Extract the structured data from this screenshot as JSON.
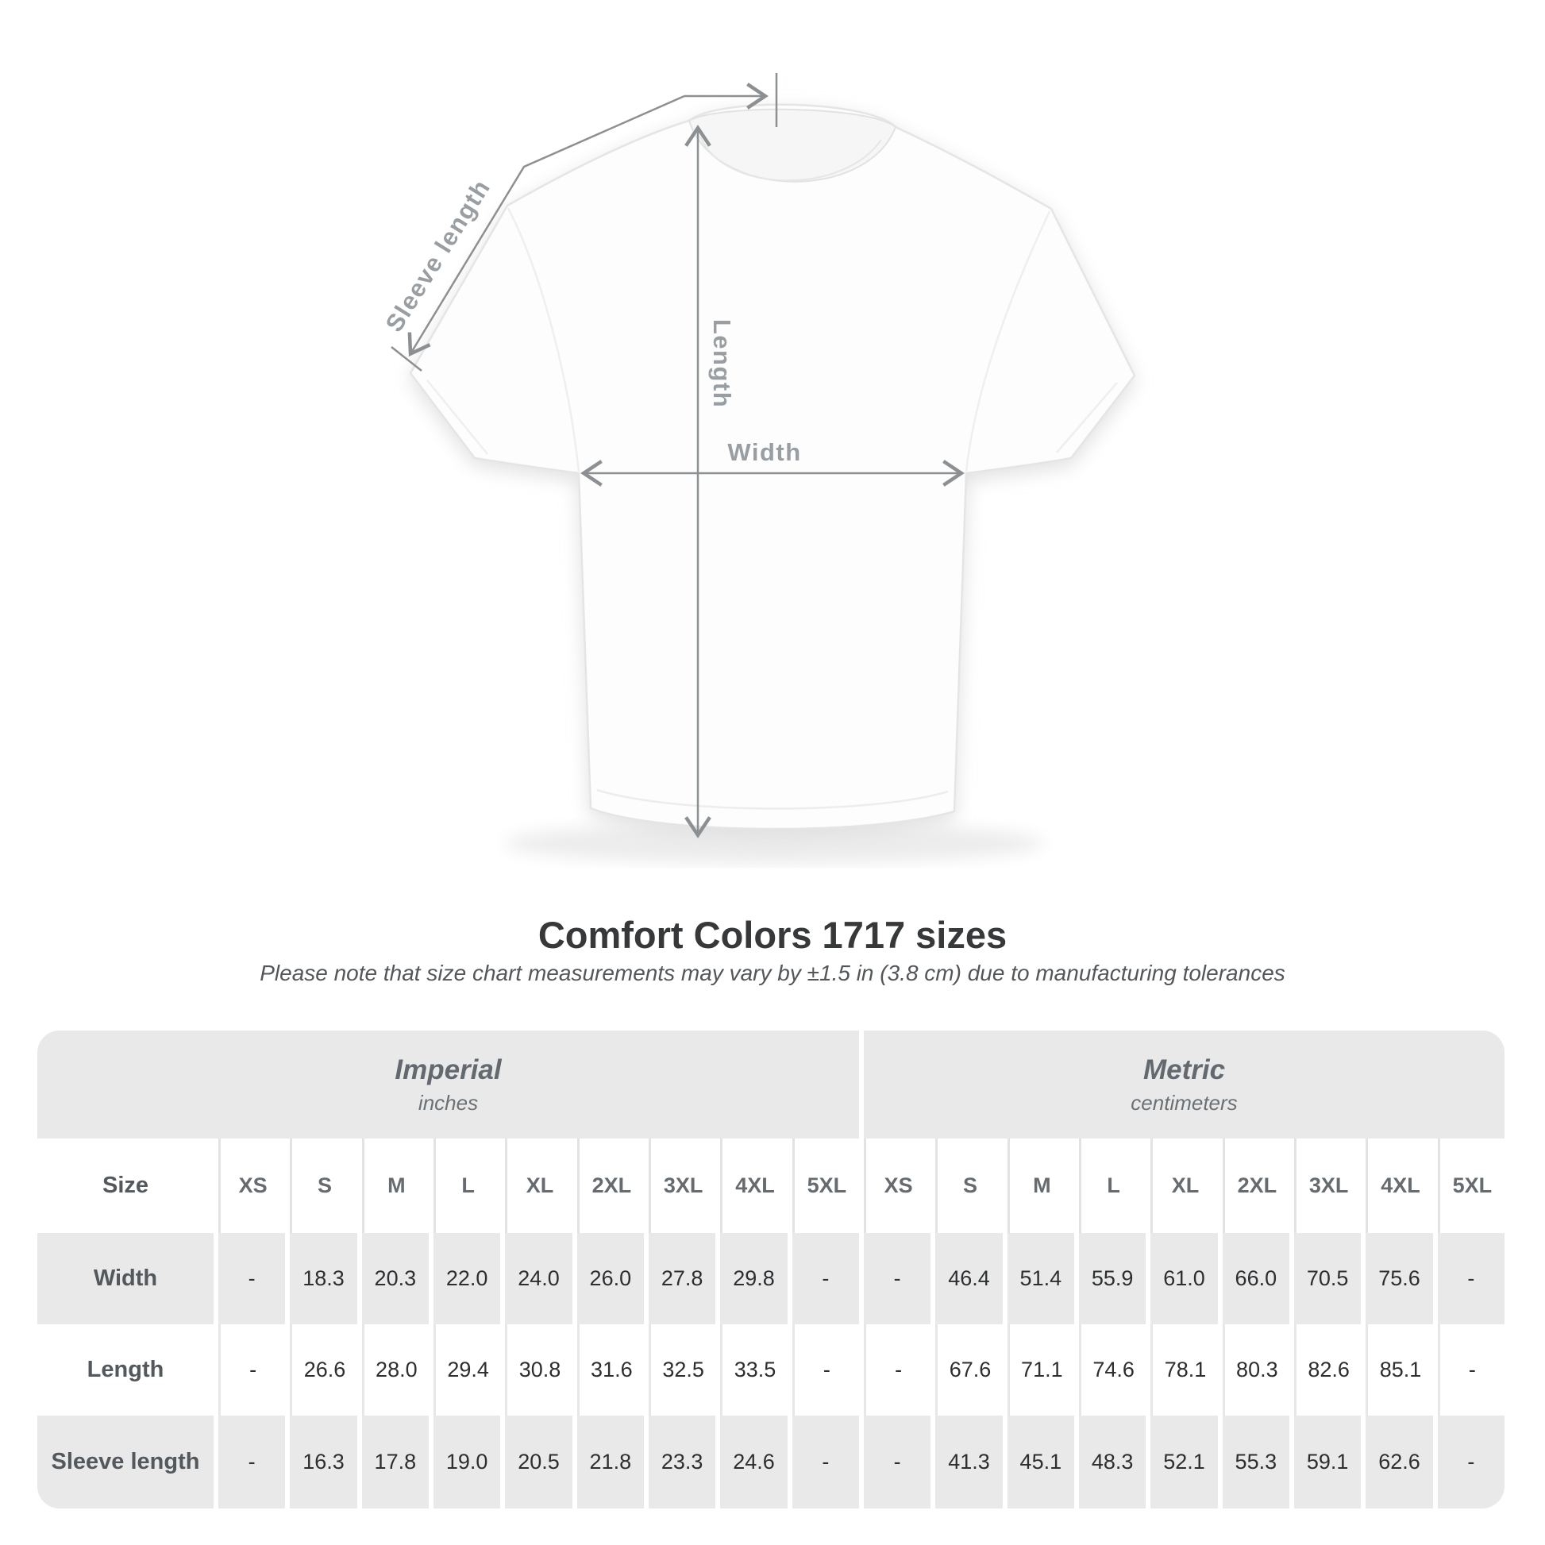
{
  "title": "Comfort Colors 1717 sizes",
  "subtitle": "Please note that size chart measurements may vary by ±1.5 in (3.8 cm) due to manufacturing tolerances",
  "diagram": {
    "sleeve_label": "Sleeve length",
    "length_label": "Length",
    "width_label": "Width"
  },
  "colors": {
    "measure_line": "#8d9093",
    "measure_label": "#999ea2",
    "title_text": "#363839",
    "table_band": "#e9e9ea"
  },
  "table": {
    "size_header": "Size",
    "groups": [
      {
        "label": "Imperial",
        "sublabel": "inches"
      },
      {
        "label": "Metric",
        "sublabel": "centimeters"
      }
    ],
    "sizes": [
      "XS",
      "S",
      "M",
      "L",
      "XL",
      "2XL",
      "3XL",
      "4XL",
      "5XL"
    ],
    "rows": [
      {
        "label": "Width",
        "imperial": [
          "-",
          "18.3",
          "20.3",
          "22.0",
          "24.0",
          "26.0",
          "27.8",
          "29.8",
          "-"
        ],
        "metric": [
          "-",
          "46.4",
          "51.4",
          "55.9",
          "61.0",
          "66.0",
          "70.5",
          "75.6",
          "-"
        ]
      },
      {
        "label": "Length",
        "imperial": [
          "-",
          "26.6",
          "28.0",
          "29.4",
          "30.8",
          "31.6",
          "32.5",
          "33.5",
          "-"
        ],
        "metric": [
          "-",
          "67.6",
          "71.1",
          "74.6",
          "78.1",
          "80.3",
          "82.6",
          "85.1",
          "-"
        ]
      },
      {
        "label": "Sleeve length",
        "imperial": [
          "-",
          "16.3",
          "17.8",
          "19.0",
          "20.5",
          "21.8",
          "23.3",
          "24.6",
          "-"
        ],
        "metric": [
          "-",
          "41.3",
          "45.1",
          "48.3",
          "52.1",
          "55.3",
          "59.1",
          "62.6",
          "-"
        ]
      }
    ]
  },
  "chart_data": {
    "type": "table",
    "title": "Comfort Colors 1717 sizes",
    "note": "Measurements may vary by ±1.5 in (3.8 cm) due to manufacturing tolerances",
    "column_groups": [
      "Imperial (inches)",
      "Metric (centimeters)"
    ],
    "columns": [
      "XS",
      "S",
      "M",
      "L",
      "XL",
      "2XL",
      "3XL",
      "4XL",
      "5XL"
    ],
    "rows": [
      {
        "measure": "Width",
        "imperial_in": [
          null,
          18.3,
          20.3,
          22.0,
          24.0,
          26.0,
          27.8,
          29.8,
          null
        ],
        "metric_cm": [
          null,
          46.4,
          51.4,
          55.9,
          61.0,
          66.0,
          70.5,
          75.6,
          null
        ]
      },
      {
        "measure": "Length",
        "imperial_in": [
          null,
          26.6,
          28.0,
          29.4,
          30.8,
          31.6,
          32.5,
          33.5,
          null
        ],
        "metric_cm": [
          null,
          67.6,
          71.1,
          74.6,
          78.1,
          80.3,
          82.6,
          85.1,
          null
        ]
      },
      {
        "measure": "Sleeve length",
        "imperial_in": [
          null,
          16.3,
          17.8,
          19.0,
          20.5,
          21.8,
          23.3,
          24.6,
          null
        ],
        "metric_cm": [
          null,
          41.3,
          45.1,
          48.3,
          52.1,
          55.3,
          59.1,
          62.6,
          null
        ]
      }
    ]
  }
}
